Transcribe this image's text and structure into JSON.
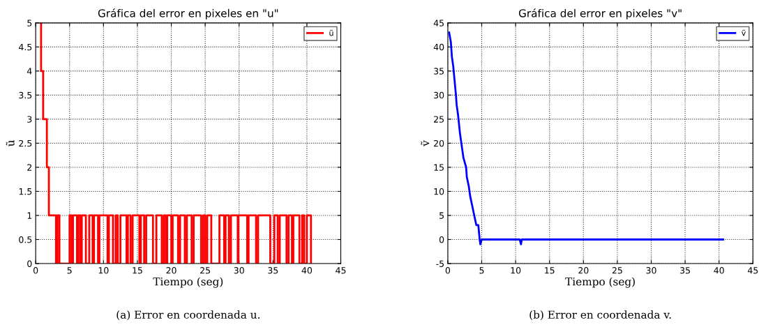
{
  "chart_data": [
    {
      "type": "step",
      "title": "Gráfica del error en pixeles en \"u\"",
      "xlabel": "Tiempo (seg)",
      "ylabel": "ũ",
      "series": [
        {
          "name": "ũ",
          "color": "#ff0000",
          "x": [
            0.75,
            0.8,
            1.1,
            1.65,
            1.95,
            3.0,
            3.2,
            3.5,
            5.0,
            5.3,
            5.5,
            6.1,
            6.3,
            6.6,
            6.8,
            7.4,
            7.9,
            8.4,
            8.6,
            9.2,
            9.4,
            10.6,
            10.8,
            11.4,
            11.8,
            12.1,
            12.5,
            13.4,
            13.6,
            14.0,
            14.3,
            15.3,
            15.5,
            16.0,
            16.3,
            17.3,
            17.8,
            18.6,
            18.9,
            19.2,
            19.4,
            20.0,
            20.2,
            21.0,
            21.3,
            22.0,
            22.3,
            23.0,
            23.3,
            24.4,
            24.7,
            25.0,
            25.3,
            25.9,
            27.1,
            27.8,
            28.0,
            28.5,
            28.8,
            29.8,
            29.9,
            31.2,
            31.4,
            32.5,
            32.8,
            34.6,
            35.2,
            35.7,
            36.0,
            37.0,
            37.3,
            37.8,
            38.0,
            38.9,
            39.3,
            39.6,
            40.0,
            40.6
          ],
          "values": [
            5,
            4,
            3,
            2,
            1,
            0,
            1,
            0,
            1,
            0,
            1,
            0,
            1,
            0,
            1,
            0,
            1,
            0,
            1,
            0,
            1,
            0,
            1,
            0,
            1,
            0,
            1,
            0,
            1,
            0,
            1,
            0,
            1,
            0,
            1,
            0,
            1,
            0,
            1,
            0,
            1,
            0,
            1,
            0,
            1,
            0,
            1,
            0,
            1,
            0,
            1,
            0,
            1,
            0,
            1,
            0,
            1,
            0,
            1,
            0,
            1,
            0,
            1,
            0,
            1,
            0,
            1,
            0,
            1,
            0,
            1,
            0,
            1,
            0,
            1,
            0,
            1,
            0
          ]
        }
      ],
      "xlim": [
        0,
        45
      ],
      "xticks": [
        0,
        5,
        10,
        15,
        20,
        25,
        30,
        35,
        40,
        45
      ],
      "ylim": [
        0,
        5
      ],
      "yticks": [
        0,
        0.5,
        1,
        1.5,
        2,
        2.5,
        3,
        3.5,
        4,
        4.5,
        5
      ],
      "grid": true,
      "legend": "top right",
      "line_style": "solid",
      "annotations": [
        "(a) Error en coordenada u."
      ]
    },
    {
      "type": "line",
      "title": "Gráfica del error en pixeles \"v\"",
      "xlabel": "Tiempo (seg)",
      "ylabel": "ṽ",
      "series": [
        {
          "name": "ṽ",
          "color": "#0000ff",
          "x": [
            0.2,
            0.45,
            0.6,
            0.8,
            1.0,
            1.2,
            1.3,
            1.5,
            1.8,
            2.1,
            2.3,
            2.7,
            2.8,
            3.1,
            3.3,
            3.6,
            3.9,
            4.2,
            4.5,
            4.7,
            4.8,
            5.0,
            10.6,
            10.8,
            10.9,
            40.6
          ],
          "values": [
            43,
            41,
            38,
            36,
            33,
            30,
            28,
            26,
            22,
            19,
            17,
            15,
            13,
            11,
            9,
            7,
            5,
            3,
            3,
            0,
            -1,
            0,
            0,
            -1,
            0,
            0
          ]
        }
      ],
      "xlim": [
        0,
        45
      ],
      "xticks": [
        0,
        5,
        10,
        15,
        20,
        25,
        30,
        35,
        40,
        45
      ],
      "ylim": [
        -5,
        45
      ],
      "yticks": [
        -5,
        0,
        5,
        10,
        15,
        20,
        25,
        30,
        35,
        40,
        45
      ],
      "grid": true,
      "legend": "top right",
      "line_style": "solid",
      "annotations": [
        "(b) Error en coordenada v."
      ]
    }
  ]
}
